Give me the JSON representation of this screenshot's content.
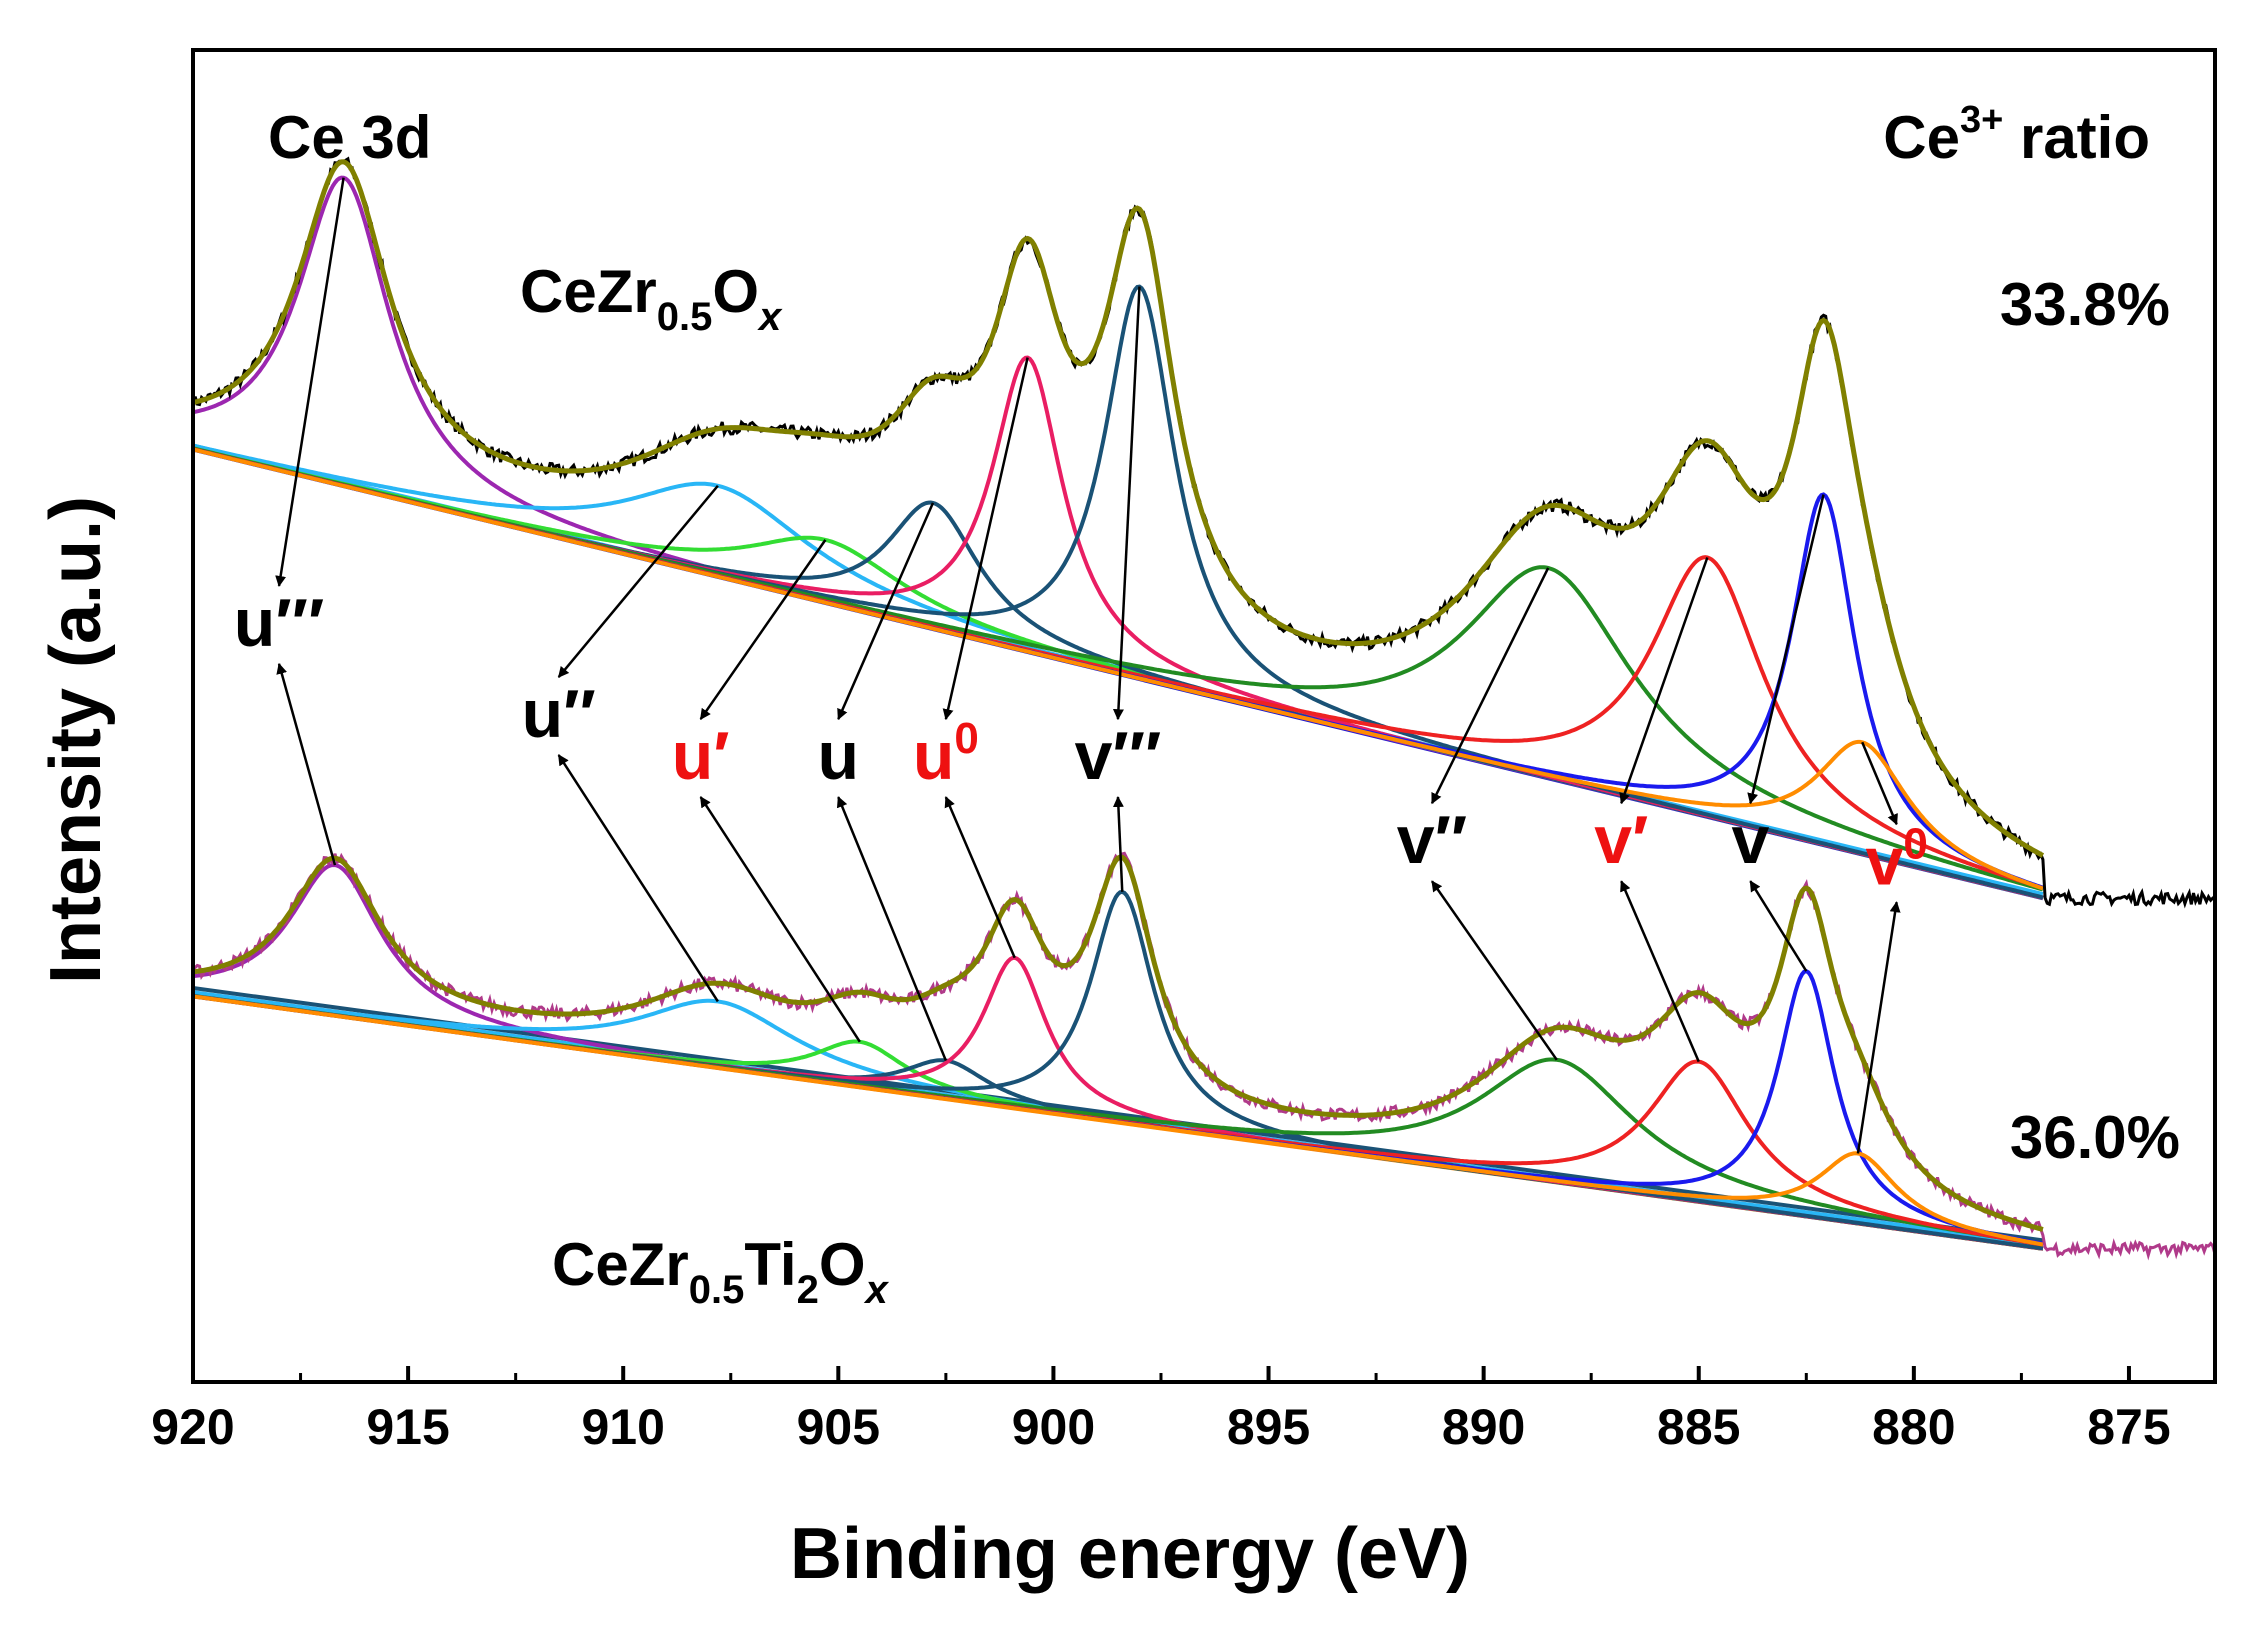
{
  "chart_data": {
    "type": "line",
    "title": "",
    "xlabel": "Binding energy (eV)",
    "ylabel": "Intensity (a.u.)",
    "xlim": [
      920,
      873
    ],
    "x_reversed": true,
    "x_ticks": [
      920,
      915,
      910,
      905,
      900,
      895,
      890,
      885,
      880,
      875
    ],
    "y_ticks_shown": false,
    "grid": false,
    "annotations": {
      "region": "Ce 3d",
      "ratio_header_base": "Ce",
      "ratio_header_sup": "3+",
      "ratio_header_tail": " ratio"
    },
    "samples": [
      {
        "name_parts": [
          "CeZr",
          "0.5",
          "O",
          "x"
        ],
        "ce3_ratio": "33.8%",
        "raw_color": "#000000",
        "fit_color": "#808000",
        "background_colors": [
          "#1c1ccc",
          "#29b6f6"
        ],
        "baseline": {
          "x": [
            920,
            877
          ],
          "y": [
            13.3,
            6.9
          ]
        },
        "components": [
          {
            "label": "u'''",
            "center": 916.5,
            "height": 4.4,
            "width": 1.3,
            "color": "#9c27b0"
          },
          {
            "label": "u''",
            "center": 907.8,
            "height": 1.3,
            "width": 2.6,
            "color": "#29b6f6"
          },
          {
            "label": "u'",
            "center": 905.3,
            "height": 0.9,
            "width": 2.2,
            "color": "#33dd33"
          },
          {
            "label": "u",
            "center": 902.8,
            "height": 1.8,
            "width": 1.3,
            "color": "#1a5276"
          },
          {
            "label": "u0",
            "center": 900.6,
            "height": 4.2,
            "width": 1.0,
            "color": "#e91e63"
          },
          {
            "label": "v'''",
            "center": 898.0,
            "height": 5.6,
            "width": 1.0,
            "color": "#1a5276"
          },
          {
            "label": "v''",
            "center": 888.5,
            "height": 3.0,
            "width": 2.4,
            "color": "#228b22"
          },
          {
            "label": "v'",
            "center": 884.8,
            "height": 3.7,
            "width": 1.6,
            "color": "#ee2222"
          },
          {
            "label": "v",
            "center": 882.1,
            "height": 5.0,
            "width": 0.9,
            "color": "#1a1aee"
          },
          {
            "label": "v0",
            "center": 881.2,
            "height": 1.6,
            "width": 1.3,
            "color": "#ff8c00"
          }
        ]
      },
      {
        "name_parts": [
          "CeZr",
          "0.5",
          "Ti",
          "2",
          "O",
          "x"
        ],
        "ce3_ratio": "36.0%",
        "raw_color": "#b03a8a",
        "fit_color": "#808000",
        "background_colors": [
          "#ff8c00",
          "#29b6f6",
          "#1a5276"
        ],
        "baseline": {
          "x": [
            920,
            877
          ],
          "y": [
            5.5,
            1.9
          ]
        },
        "components": [
          {
            "label": "u'''",
            "center": 916.7,
            "height": 2.15,
            "width": 1.3,
            "color": "#9c27b0"
          },
          {
            "label": "u''",
            "center": 907.8,
            "height": 0.95,
            "width": 2.2,
            "color": "#29b6f6"
          },
          {
            "label": "u'",
            "center": 904.5,
            "height": 0.65,
            "width": 1.3,
            "color": "#33dd33"
          },
          {
            "label": "u",
            "center": 902.5,
            "height": 0.55,
            "width": 1.2,
            "color": "#1a5276"
          },
          {
            "label": "u0",
            "center": 900.9,
            "height": 2.15,
            "width": 0.9,
            "color": "#e91e63"
          },
          {
            "label": "v'''",
            "center": 898.4,
            "height": 3.3,
            "width": 0.9,
            "color": "#1a5276"
          },
          {
            "label": "v''",
            "center": 888.3,
            "height": 1.75,
            "width": 2.2,
            "color": "#228b22"
          },
          {
            "label": "v'",
            "center": 885.0,
            "height": 2.0,
            "width": 1.4,
            "color": "#ee2222"
          },
          {
            "label": "v",
            "center": 882.5,
            "height": 3.5,
            "width": 0.8,
            "color": "#1a1aee"
          },
          {
            "label": "v0",
            "center": 881.3,
            "height": 1.0,
            "width": 1.1,
            "color": "#ff8c00"
          }
        ]
      }
    ],
    "peak_labels": [
      {
        "text": "u",
        "suffix": "'''",
        "super": "",
        "x": 918.0,
        "y": 10.5,
        "color": "#000000"
      },
      {
        "text": "u",
        "suffix": "''",
        "super": "",
        "x": 911.5,
        "y": 9.2,
        "color": "#000000"
      },
      {
        "text": "u",
        "suffix": "'",
        "super": "",
        "x": 908.2,
        "y": 8.6,
        "color": "#ee1111"
      },
      {
        "text": "u",
        "suffix": "",
        "super": "",
        "x": 905.0,
        "y": 8.6,
        "color": "#000000"
      },
      {
        "text": "u",
        "suffix": "",
        "super": "0",
        "x": 902.5,
        "y": 8.6,
        "color": "#ee1111"
      },
      {
        "text": "v",
        "suffix": "'''",
        "super": "",
        "x": 898.5,
        "y": 8.6,
        "color": "#000000"
      },
      {
        "text": "v",
        "suffix": "''",
        "super": "",
        "x": 891.2,
        "y": 7.4,
        "color": "#000000"
      },
      {
        "text": "v",
        "suffix": "'",
        "super": "",
        "x": 886.8,
        "y": 7.4,
        "color": "#ee1111"
      },
      {
        "text": "v",
        "suffix": "",
        "super": "",
        "x": 883.8,
        "y": 7.4,
        "color": "#000000"
      },
      {
        "text": "v",
        "suffix": "",
        "super": "0",
        "x": 880.4,
        "y": 7.1,
        "color": "#ee1111"
      }
    ]
  }
}
